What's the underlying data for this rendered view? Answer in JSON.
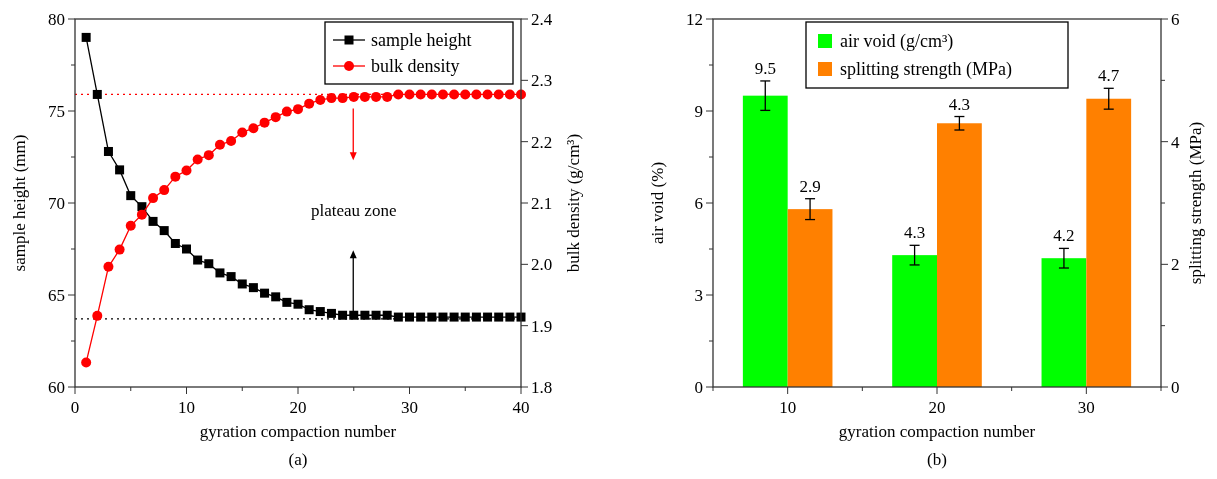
{
  "chart_data": [
    {
      "type": "line",
      "xlabel": "gyration compaction number",
      "ylabel": "sample height (mm)",
      "y2label": "bulk density (g/cm³)",
      "x": [
        1,
        2,
        3,
        4,
        5,
        6,
        7,
        8,
        9,
        10,
        11,
        12,
        13,
        14,
        15,
        16,
        17,
        18,
        19,
        20,
        21,
        22,
        23,
        24,
        25,
        26,
        27,
        28,
        29,
        30,
        31,
        32,
        33,
        34,
        35,
        36,
        37,
        38,
        39,
        40
      ],
      "series": [
        {
          "name": "sample height",
          "color": "#000000",
          "marker": "square",
          "values": [
            79.0,
            75.9,
            72.8,
            71.8,
            70.4,
            69.8,
            69.0,
            68.5,
            67.8,
            67.5,
            66.9,
            66.7,
            66.2,
            66.0,
            65.6,
            65.4,
            65.1,
            64.9,
            64.6,
            64.5,
            64.2,
            64.1,
            64.0,
            63.9,
            63.9,
            63.9,
            63.9,
            63.9,
            63.8,
            63.8,
            63.8,
            63.8,
            63.8,
            63.8,
            63.8,
            63.8,
            63.8,
            63.8,
            63.8,
            63.8
          ]
        },
        {
          "name": "bulk density",
          "color": "#ff0000",
          "marker": "circle",
          "axis": "y2",
          "values": [
            1.84,
            1.916,
            1.996,
            2.024,
            2.063,
            2.081,
            2.108,
            2.121,
            2.143,
            2.153,
            2.171,
            2.178,
            2.195,
            2.201,
            2.215,
            2.222,
            2.231,
            2.24,
            2.249,
            2.253,
            2.262,
            2.268,
            2.271,
            2.271,
            2.273,
            2.273,
            2.273,
            2.273,
            2.277,
            2.277,
            2.277,
            2.277,
            2.277,
            2.277,
            2.277,
            2.277,
            2.277,
            2.277,
            2.277,
            2.277
          ]
        }
      ],
      "xlim": [
        0,
        40
      ],
      "xticks": [
        0,
        {
          "value": 5,
          "label": null
        },
        10,
        {
          "value": 15,
          "label": null
        },
        20,
        {
          "value": 25,
          "label": null
        },
        30,
        {
          "value": 35,
          "label": null
        },
        40
      ],
      "ylim": [
        60,
        80
      ],
      "yticks": [
        60,
        {
          "value": 62.5,
          "label": null
        },
        65,
        {
          "value": 67.5,
          "label": null
        },
        70,
        {
          "value": 72.5,
          "label": null
        },
        75,
        {
          "value": 77.5,
          "label": null
        },
        80
      ],
      "y2lim": [
        1.8,
        2.4
      ],
      "y2ticks": [
        1.8,
        1.9,
        {
          "value": 2,
          "label": "2.0"
        },
        2.1,
        2.2,
        2.3,
        2.4
      ],
      "ref_lines": [
        {
          "axis": "y",
          "value": 63.7,
          "color": "#000000",
          "line_style": "dotted"
        },
        {
          "axis": "y2",
          "value": 2.277,
          "color": "#ff0000",
          "line_style": "dotted"
        }
      ],
      "annotations": [
        "plateau zone",
        "(a)"
      ],
      "legend": "top right"
    },
    {
      "type": "bar",
      "xlabel": "gyration compaction number",
      "ylabel": "air void (%)",
      "y2label": "splitting strength (MPa)",
      "categories": [
        "10",
        "20",
        "30"
      ],
      "series": [
        {
          "name": "air void (g/cm³)",
          "color": "#00ff00",
          "values": [
            9.5,
            4.3,
            4.2
          ],
          "errors": [
            0.48,
            0.32,
            0.32
          ]
        },
        {
          "name": "splitting strength (MPa)",
          "color": "#ff8000",
          "axis": "y2",
          "values": [
            2.9,
            4.3,
            4.7
          ],
          "errors": [
            0.17,
            0.11,
            0.17
          ]
        }
      ],
      "ylim": [
        0,
        12
      ],
      "yticks": [
        0,
        {
          "value": 1.5,
          "label": null
        },
        3,
        {
          "value": 4.5,
          "label": null
        },
        6,
        {
          "value": 7.5,
          "label": null
        },
        9,
        {
          "value": 10.5,
          "label": null
        },
        12
      ],
      "y2lim": [
        0,
        6
      ],
      "y2ticks": [
        0,
        {
          "value": 1,
          "label": null
        },
        2,
        {
          "value": 3,
          "label": null
        },
        4,
        {
          "value": 5,
          "label": null
        },
        6
      ],
      "data_labels": true,
      "annotations": [
        "(b)"
      ],
      "legend": "top"
    }
  ]
}
